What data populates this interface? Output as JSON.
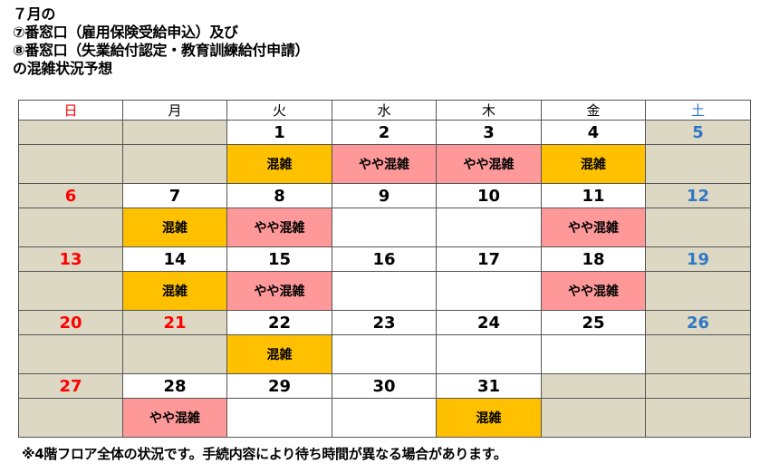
{
  "title": {
    "line1": "７月の",
    "line2": "⑦番窓口（雇用保険受給申込）及び",
    "line3": "⑧番窓口（失業給付認定・教育訓練給付申請）",
    "line4": "の混雑状況予想"
  },
  "weekdays": [
    "日",
    "月",
    "火",
    "水",
    "木",
    "金",
    "土"
  ],
  "weeks": [
    {
      "dates": [
        "",
        "",
        "1",
        "2",
        "3",
        "4",
        "5"
      ],
      "status": [
        "",
        "",
        "混雑",
        "やや混雑",
        "やや混雑",
        "混雑",
        ""
      ]
    },
    {
      "dates": [
        "6",
        "7",
        "8",
        "9",
        "10",
        "11",
        "12"
      ],
      "status": [
        "",
        "混雑",
        "やや混雑",
        "",
        "",
        "やや混雑",
        ""
      ]
    },
    {
      "dates": [
        "13",
        "14",
        "15",
        "16",
        "17",
        "18",
        "19"
      ],
      "status": [
        "",
        "混雑",
        "やや混雑",
        "",
        "",
        "やや混雑",
        ""
      ]
    },
    {
      "dates": [
        "20",
        "21",
        "22",
        "23",
        "24",
        "25",
        "26"
      ],
      "status": [
        "",
        "",
        "混雑",
        "",
        "",
        "",
        ""
      ]
    },
    {
      "dates": [
        "27",
        "28",
        "29",
        "30",
        "31",
        "",
        ""
      ],
      "status": [
        "",
        "やや混雑",
        "",
        "",
        "混雑",
        "",
        ""
      ]
    }
  ],
  "holidays": [
    "21"
  ],
  "colors": {
    "busy": "#ffc000",
    "somewhat_busy": "#ff9999",
    "weekend_cell": "#dcd8c4",
    "sunday_text": "#ff0000",
    "saturday_text": "#2f78c4"
  },
  "footer": "※4階フロア全体の状況です。手続内容により待ち時間が異なる場合があります。"
}
